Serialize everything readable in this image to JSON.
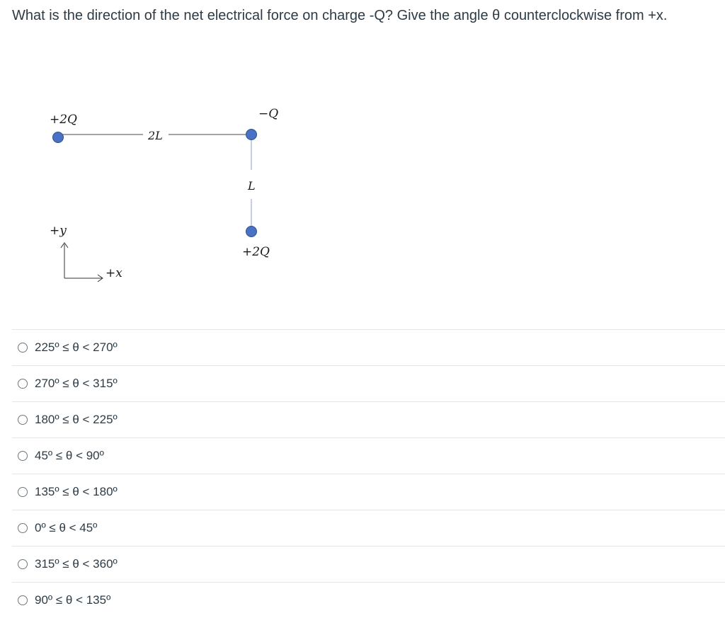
{
  "question": {
    "text": "What is the direction of the net electrical force on charge -Q?  Give the angle θ counterclockwise from +x."
  },
  "diagram": {
    "charge_top_left_label": "+2Q",
    "charge_top_right_label": "−Q",
    "charge_bottom_right_label": "+2Q",
    "horizontal_distance_label": "2L",
    "vertical_distance_label": "L",
    "axis_y_label": "+y",
    "axis_x_label": "+x",
    "charge_color": "#4a72c4"
  },
  "answers": [
    {
      "label": "225º ≤ θ < 270º"
    },
    {
      "label": "270º ≤ θ < 315º"
    },
    {
      "label": "180º ≤ θ < 225º"
    },
    {
      "label": "45º ≤ θ < 90º"
    },
    {
      "label": "135º ≤ θ < 180º"
    },
    {
      "label": "0º ≤ θ < 45º"
    },
    {
      "label": "315º ≤ θ < 360º"
    },
    {
      "label": "90º ≤ θ < 135º"
    }
  ]
}
